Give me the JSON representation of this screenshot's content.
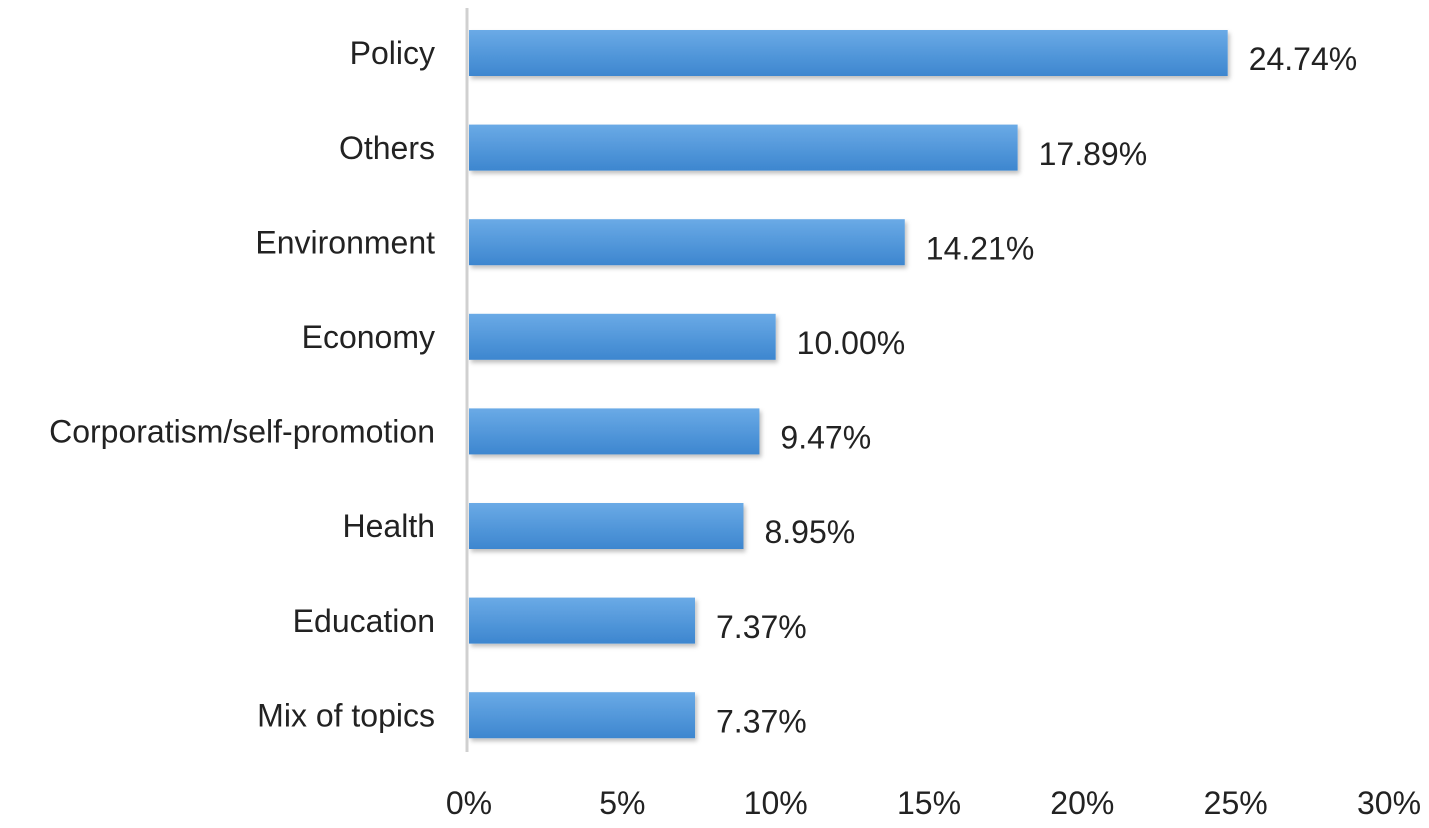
{
  "chart_data": {
    "type": "bar",
    "orientation": "horizontal",
    "title": "",
    "xlabel": "",
    "ylabel": "",
    "categories": [
      "Policy",
      "Others",
      "Environment",
      "Economy",
      "Corporatism/self-promotion",
      "Health",
      "Education",
      "Mix of topics"
    ],
    "values": [
      24.74,
      17.89,
      14.21,
      10.0,
      9.47,
      8.95,
      7.37,
      7.37
    ],
    "value_labels": [
      "24.74%",
      "17.89%",
      "14.21%",
      "10.00%",
      "9.47%",
      "8.95%",
      "7.37%",
      "7.37%"
    ],
    "xlim": [
      0,
      30
    ],
    "x_ticks": [
      0,
      5,
      10,
      15,
      20,
      25,
      30
    ],
    "x_tick_labels": [
      "0%",
      "5%",
      "10%",
      "15%",
      "20%",
      "25%",
      "30%"
    ],
    "grid": false,
    "legend": "none",
    "colors": {
      "bar_top": "#6AAAE6",
      "bar_bottom": "#3D86CF",
      "axis_line": "#D0D0D0"
    }
  }
}
